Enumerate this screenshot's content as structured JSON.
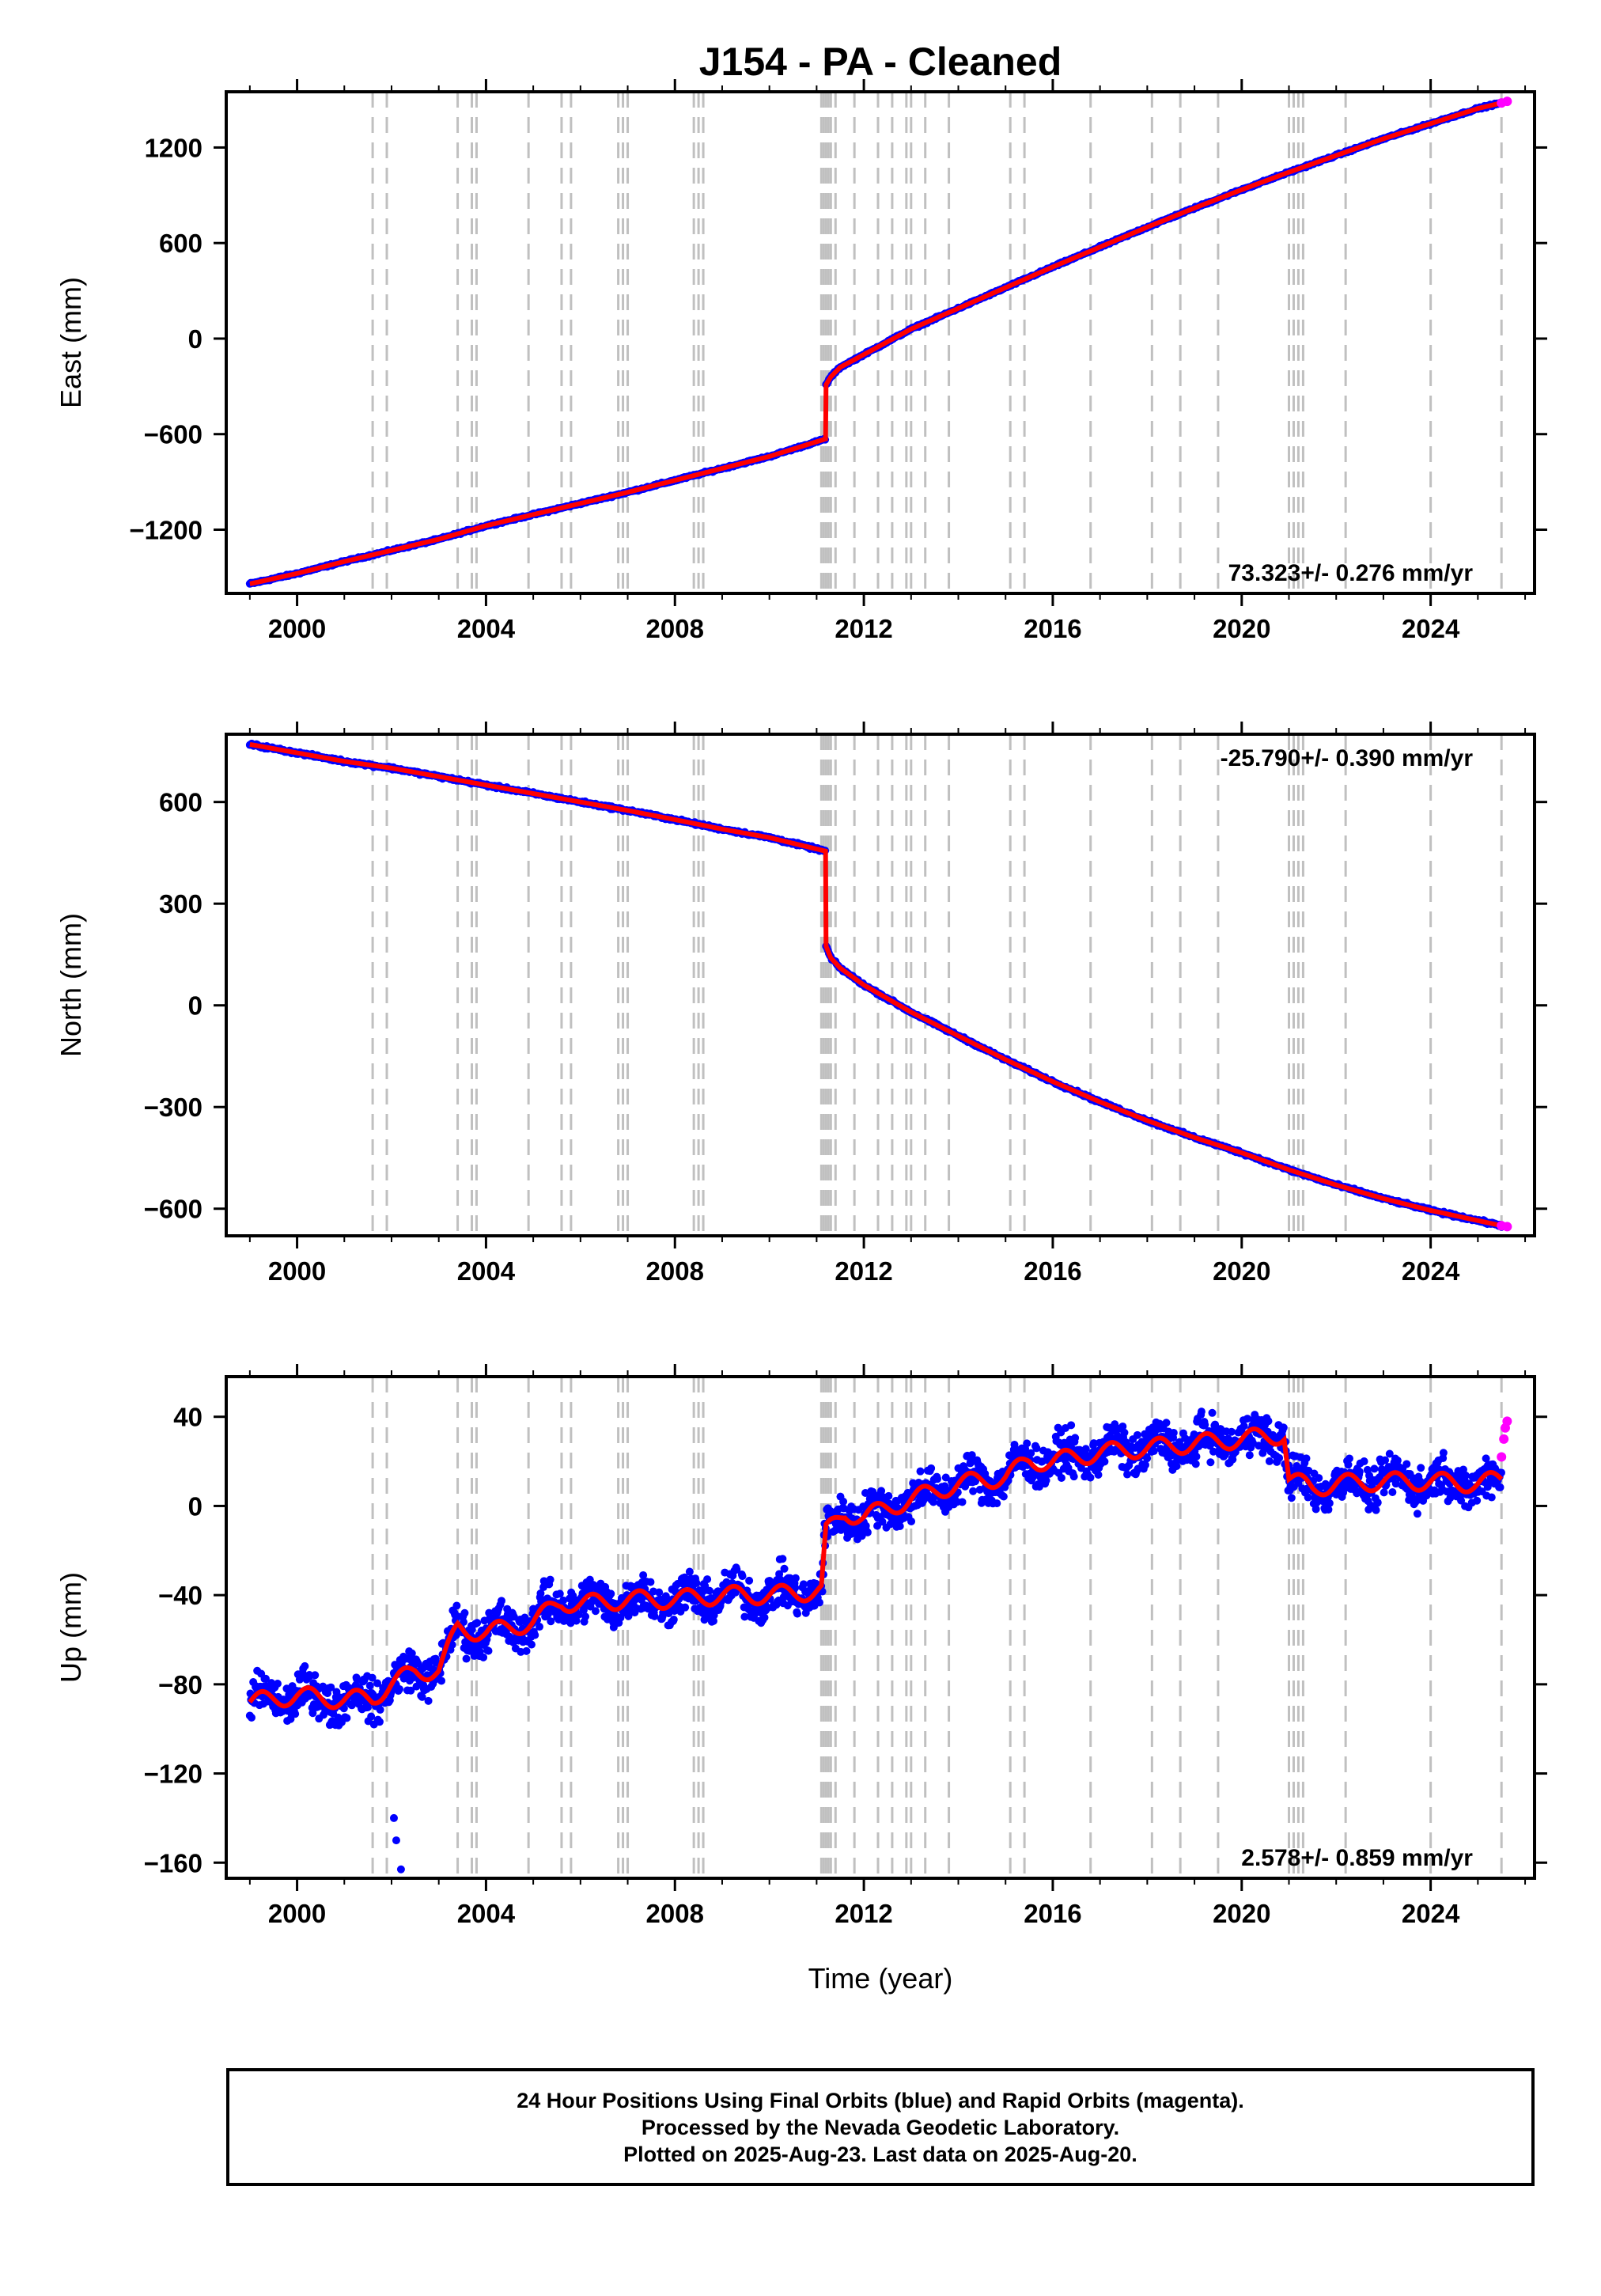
{
  "title": "J154  - PA - Cleaned",
  "xlabel": "Time (year)",
  "x_ticks": [
    "2000",
    "2004",
    "2008",
    "2012",
    "2016",
    "2020",
    "2024"
  ],
  "colors": {
    "final_orbits": "#0000ff",
    "rapid_orbits": "#ff00ff",
    "model": "#ff0000",
    "event_lines": "#c0c0c0"
  },
  "legend": [
    "24 Hour Positions Using Final Orbits (blue) and Rapid Orbits (magenta).",
    "Processed by the Nevada Geodetic Laboratory.",
    "Plotted on 2025-Aug-23. Last data on 2025-Aug-20."
  ],
  "chart_data": [
    {
      "type": "scatter",
      "name": "east",
      "ylabel": "East (mm)",
      "y_ticks": [
        "1200",
        "600",
        "0",
        "−600",
        "−1200"
      ],
      "xlim": [
        1998.5,
        2026.2
      ],
      "ylim": [
        -1600,
        1550
      ],
      "velocity": "73.323+/- 0.276 mm/yr",
      "velocity_position": "bottom-right",
      "offset_lines": [
        2001.6,
        2001.9,
        2003.4,
        2003.7,
        2003.8,
        2004.9,
        2005.6,
        2005.8,
        2006.8,
        2006.9,
        2007.0,
        2008.4,
        2008.5,
        2008.6,
        2011.1,
        2011.15,
        2011.2,
        2011.25,
        2011.3,
        2011.4,
        2011.8,
        2012.3,
        2012.6,
        2012.9,
        2013.0,
        2013.3,
        2013.8,
        2015.1,
        2015.4,
        2016.8,
        2018.1,
        2018.7,
        2019.5,
        2021.0,
        2021.1,
        2021.2,
        2021.3,
        2022.2,
        2024.0,
        2025.5
      ],
      "series": [
        {
          "name": "final",
          "x": [
            1999.0,
            2000.0,
            2001.0,
            2002.0,
            2003.0,
            2004.0,
            2005.0,
            2006.0,
            2007.0,
            2008.0,
            2009.0,
            2010.0,
            2011.19,
            2011.2,
            2011.3,
            2011.5,
            2012.0,
            2013.0,
            2014.0,
            2015.0,
            2016.0,
            2017.0,
            2018.0,
            2019.0,
            2020.0,
            2021.0,
            2022.0,
            2023.0,
            2024.0,
            2025.0,
            2025.5
          ],
          "y": [
            -1540,
            -1475,
            -1400,
            -1330,
            -1260,
            -1175,
            -1105,
            -1035,
            -965,
            -890,
            -815,
            -740,
            -630,
            -290,
            -240,
            -180,
            -100,
            60,
            190,
            320,
            450,
            575,
            700,
            820,
            935,
            1045,
            1150,
            1255,
            1350,
            1445,
            1480
          ]
        },
        {
          "name": "rapid",
          "x": [
            2025.5,
            2025.62
          ],
          "y": [
            1480,
            1490
          ]
        }
      ]
    },
    {
      "type": "scatter",
      "name": "north",
      "ylabel": "North (mm)",
      "y_ticks": [
        "600",
        "300",
        "0",
        "−300",
        "−600"
      ],
      "xlim": [
        1998.5,
        2026.2
      ],
      "ylim": [
        -680,
        800
      ],
      "velocity": "-25.790+/- 0.390 mm/yr",
      "velocity_position": "top-right",
      "offset_lines": [
        2001.6,
        2001.9,
        2003.4,
        2003.7,
        2003.8,
        2004.9,
        2005.6,
        2005.8,
        2006.8,
        2006.9,
        2007.0,
        2008.4,
        2008.5,
        2008.6,
        2011.1,
        2011.15,
        2011.2,
        2011.25,
        2011.3,
        2011.4,
        2011.8,
        2012.3,
        2012.6,
        2012.9,
        2013.0,
        2013.3,
        2013.8,
        2015.1,
        2015.4,
        2016.8,
        2018.1,
        2018.7,
        2019.5,
        2021.0,
        2021.1,
        2021.2,
        2021.3,
        2022.2,
        2024.0,
        2025.5
      ],
      "series": [
        {
          "name": "final",
          "x": [
            1999.0,
            2000.0,
            2001.0,
            2002.0,
            2003.0,
            2004.0,
            2005.0,
            2006.0,
            2007.0,
            2008.0,
            2009.0,
            2010.0,
            2011.19,
            2011.2,
            2011.3,
            2011.5,
            2012.0,
            2013.0,
            2014.0,
            2015.0,
            2016.0,
            2017.0,
            2018.0,
            2019.0,
            2020.0,
            2021.0,
            2022.0,
            2023.0,
            2024.0,
            2025.0,
            2025.5
          ],
          "y": [
            770,
            745,
            720,
            700,
            675,
            650,
            625,
            600,
            575,
            548,
            520,
            495,
            455,
            175,
            140,
            110,
            60,
            -20,
            -90,
            -160,
            -225,
            -285,
            -340,
            -390,
            -435,
            -485,
            -530,
            -570,
            -605,
            -635,
            -650
          ]
        },
        {
          "name": "rapid",
          "x": [
            2025.5,
            2025.62
          ],
          "y": [
            -650,
            -653
          ]
        }
      ]
    },
    {
      "type": "scatter",
      "name": "up",
      "ylabel": "Up (mm)",
      "y_ticks": [
        "40",
        "0",
        "−40",
        "−80",
        "−120",
        "−160"
      ],
      "xlim": [
        1998.5,
        2026.2
      ],
      "ylim": [
        -167,
        58
      ],
      "velocity": "2.578+/- 0.859 mm/yr",
      "velocity_position": "bottom-right",
      "offset_lines": [
        2001.6,
        2001.9,
        2003.4,
        2003.7,
        2003.8,
        2004.9,
        2005.6,
        2005.8,
        2006.8,
        2006.9,
        2007.0,
        2008.4,
        2008.5,
        2008.6,
        2011.1,
        2011.15,
        2011.2,
        2011.25,
        2011.3,
        2011.4,
        2011.8,
        2012.3,
        2012.6,
        2012.9,
        2013.0,
        2013.3,
        2013.8,
        2015.1,
        2015.4,
        2016.8,
        2018.1,
        2018.7,
        2019.5,
        2021.0,
        2021.1,
        2021.2,
        2021.3,
        2022.2,
        2024.0,
        2025.5
      ],
      "series": [
        {
          "name": "final",
          "x": [
            1999.0,
            2000.0,
            2001.0,
            2001.6,
            2002.0,
            2002.5,
            2003.0,
            2003.4,
            2004.0,
            2005.0,
            2005.6,
            2006.0,
            2007.0,
            2008.0,
            2009.0,
            2010.0,
            2011.1,
            2011.2,
            2011.6,
            2012.0,
            2013.0,
            2014.0,
            2015.0,
            2015.5,
            2016.0,
            2017.0,
            2018.0,
            2019.0,
            2020.0,
            2020.9,
            2021.0,
            2021.5,
            2022.0,
            2023.0,
            2024.0,
            2025.0,
            2025.5
          ],
          "y": [
            -88,
            -85,
            -87,
            -86,
            -80,
            -74,
            -74,
            -55,
            -57,
            -52,
            -43,
            -44,
            -42,
            -42,
            -40,
            -40,
            -38,
            -12,
            -3,
            -5,
            3,
            10,
            13,
            20,
            20,
            24,
            26,
            28,
            30,
            32,
            12,
            8,
            10,
            11,
            11,
            10,
            12
          ]
        },
        {
          "name": "rapid",
          "x": [
            2025.5,
            2025.55,
            2025.58,
            2025.62
          ],
          "y": [
            22,
            30,
            35,
            38
          ]
        }
      ]
    }
  ]
}
